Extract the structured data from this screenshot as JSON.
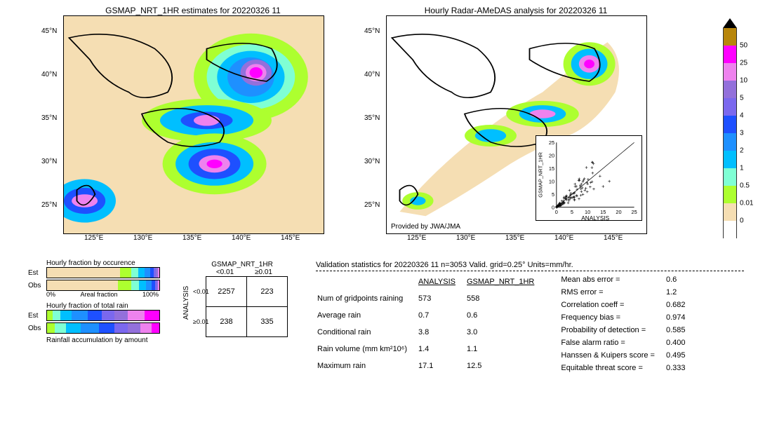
{
  "date_str": "20220326 11",
  "map_left": {
    "title": "GSMAP_NRT_1HR estimates for 20220326 11",
    "xticks": [
      "125°E",
      "130°E",
      "135°E",
      "140°E",
      "145°E"
    ],
    "yticks": [
      "25°N",
      "30°N",
      "35°N",
      "40°N",
      "45°N"
    ]
  },
  "map_right": {
    "title": "Hourly Radar-AMeDAS analysis for 20220326 11",
    "xticks": [
      "125°E",
      "130°E",
      "135°E",
      "140°E",
      "145°E"
    ],
    "yticks": [
      "25°N",
      "30°N",
      "35°N",
      "40°N",
      "45°N"
    ],
    "provider": "Provided by JWA/JMA"
  },
  "colorbar": {
    "colors": [
      "#b8860b",
      "#ff00ff",
      "#ee82ee",
      "#9370db",
      "#7b68ee",
      "#1e50ff",
      "#1e90ff",
      "#00bfff",
      "#7fffd4",
      "#adff2f",
      "#f5deb3",
      "#ffffff"
    ],
    "labels": [
      "50",
      "25",
      "10",
      "5",
      "4",
      "3",
      "2",
      "1",
      "0.5",
      "0.01",
      "0"
    ],
    "top_arrow_color": "#000000"
  },
  "inset_scatter": {
    "xlabel": "ANALYSIS",
    "ylabel": "GSMAP_NRT_1HR",
    "xlim": [
      0,
      25
    ],
    "ylim": [
      0,
      25
    ],
    "ticks": [
      0,
      5,
      10,
      15,
      20,
      25
    ]
  },
  "bars_section": {
    "occurrence_title": "Hourly fraction by occurence",
    "totalrain_title": "Hourly fraction of total rain",
    "accum_title": "Rainfall accumulation by amount",
    "row_labels": [
      "Est",
      "Obs"
    ],
    "xaxis_label": "Areal fraction",
    "xaxis_left": "0%",
    "xaxis_right": "100%",
    "occurrence": {
      "est": [
        {
          "c": "#f5deb3",
          "w": 0.65
        },
        {
          "c": "#adff2f",
          "w": 0.1
        },
        {
          "c": "#7fffd4",
          "w": 0.06
        },
        {
          "c": "#00bfff",
          "w": 0.06
        },
        {
          "c": "#1e90ff",
          "w": 0.05
        },
        {
          "c": "#1e50ff",
          "w": 0.03
        },
        {
          "c": "#7b68ee",
          "w": 0.02
        },
        {
          "c": "#9370db",
          "w": 0.015
        },
        {
          "c": "#ee82ee",
          "w": 0.015
        }
      ],
      "obs": [
        {
          "c": "#f5deb3",
          "w": 0.63
        },
        {
          "c": "#adff2f",
          "w": 0.12
        },
        {
          "c": "#7fffd4",
          "w": 0.07
        },
        {
          "c": "#00bfff",
          "w": 0.06
        },
        {
          "c": "#1e90ff",
          "w": 0.05
        },
        {
          "c": "#1e50ff",
          "w": 0.03
        },
        {
          "c": "#7b68ee",
          "w": 0.02
        },
        {
          "c": "#9370db",
          "w": 0.01
        },
        {
          "c": "#ee82ee",
          "w": 0.01
        }
      ]
    },
    "totalrain": {
      "est": [
        {
          "c": "#adff2f",
          "w": 0.05
        },
        {
          "c": "#7fffd4",
          "w": 0.07
        },
        {
          "c": "#00bfff",
          "w": 0.1
        },
        {
          "c": "#1e90ff",
          "w": 0.14
        },
        {
          "c": "#1e50ff",
          "w": 0.13
        },
        {
          "c": "#7b68ee",
          "w": 0.11
        },
        {
          "c": "#9370db",
          "w": 0.12
        },
        {
          "c": "#ee82ee",
          "w": 0.15
        },
        {
          "c": "#ff00ff",
          "w": 0.13
        }
      ],
      "obs": [
        {
          "c": "#adff2f",
          "w": 0.07
        },
        {
          "c": "#7fffd4",
          "w": 0.1
        },
        {
          "c": "#00bfff",
          "w": 0.13
        },
        {
          "c": "#1e90ff",
          "w": 0.16
        },
        {
          "c": "#1e50ff",
          "w": 0.14
        },
        {
          "c": "#7b68ee",
          "w": 0.12
        },
        {
          "c": "#9370db",
          "w": 0.11
        },
        {
          "c": "#ee82ee",
          "w": 0.1
        },
        {
          "c": "#ff00ff",
          "w": 0.07
        }
      ]
    }
  },
  "contingency": {
    "col_header": "GSMAP_NRT_1HR",
    "row_header": "ANALYSIS",
    "col_labels": [
      "<0.01",
      "≥0.01"
    ],
    "row_labels": [
      "<0.01",
      "≥0.01"
    ],
    "cells": [
      [
        "2257",
        "223"
      ],
      [
        "238",
        "335"
      ]
    ]
  },
  "validation": {
    "title": "Validation statistics for 20220326 11  n=3053 Valid. grid=0.25° Units=mm/hr.",
    "col_headers": [
      "",
      "ANALYSIS",
      "GSMAP_NRT_1HR"
    ],
    "rows": [
      {
        "label": "Num of gridpoints raining",
        "a": "573",
        "b": "558"
      },
      {
        "label": "Average rain",
        "a": "0.7",
        "b": "0.6"
      },
      {
        "label": "Conditional rain",
        "a": "3.8",
        "b": "3.0"
      },
      {
        "label": "Rain volume (mm km²10⁶)",
        "a": "1.4",
        "b": "1.1"
      },
      {
        "label": "Maximum rain",
        "a": "17.1",
        "b": "12.5"
      }
    ],
    "metrics": [
      {
        "label": "Mean abs error =",
        "v": "0.6"
      },
      {
        "label": "RMS error =",
        "v": "1.2"
      },
      {
        "label": "Correlation coeff =",
        "v": "0.682"
      },
      {
        "label": "Frequency bias =",
        "v": "0.974"
      },
      {
        "label": "Probability of detection =",
        "v": "0.585"
      },
      {
        "label": "False alarm ratio =",
        "v": "0.400"
      },
      {
        "label": "Hanssen & Kuipers score =",
        "v": "0.495"
      },
      {
        "label": "Equitable threat score =",
        "v": "0.333"
      }
    ]
  },
  "map_bg": "#f5deb3",
  "coast_color": "#000000"
}
